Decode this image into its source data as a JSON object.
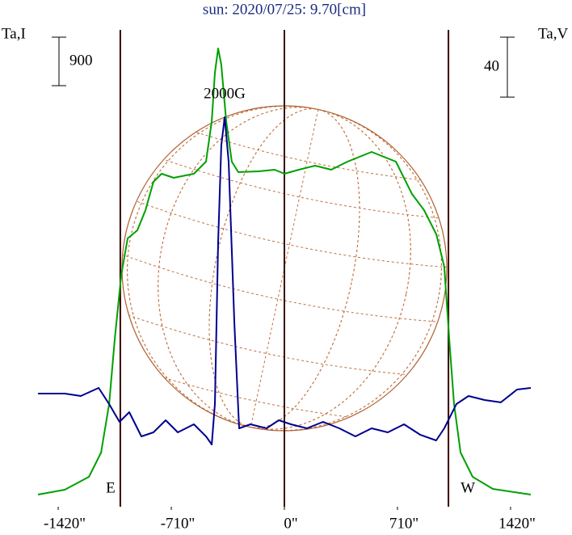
{
  "chart_data": {
    "type": "line",
    "title": "sun: 2020/07/25: 9.70[cm]",
    "ylabel": "Ta,I",
    "y2label": "Ta,V",
    "annotation": "2000G",
    "xlim": [
      -1547,
      1547
    ],
    "xticks": [
      {
        "value": -1420,
        "label": "-1420\""
      },
      {
        "value": -710,
        "label": "-710\""
      },
      {
        "value": 0,
        "label": "0\""
      },
      {
        "value": 710,
        "label": "710\""
      },
      {
        "value": 1420,
        "label": "1420\""
      }
    ],
    "ylim": [
      0,
      9000
    ],
    "y2lim": [
      0,
      324
    ],
    "scale_bars": [
      {
        "value": 900,
        "axis": "y"
      },
      {
        "value": 40,
        "axis": "y2"
      }
    ],
    "limbs": [
      {
        "x": -1030,
        "label": "E"
      },
      {
        "x": 1030,
        "label": "W"
      }
    ],
    "center_line": 0,
    "series": [
      {
        "color": "#00a000",
        "axis": "y",
        "x": [
          -1547,
          -1379,
          -1227,
          -1151,
          -1100,
          -1065,
          -1024,
          -984,
          -923,
          -872,
          -822,
          -771,
          -695,
          -568,
          -492,
          -456,
          -436,
          -416,
          -396,
          -365,
          -330,
          -289,
          -162,
          -61,
          0,
          91,
          193,
          294,
          396,
          548,
          700,
          801,
          877,
          954,
          1004,
          1035,
          1065,
          1106,
          1182,
          1309,
          1547
        ],
        "values": [
          225,
          315,
          555,
          1005,
          1905,
          3105,
          4305,
          4980,
          5130,
          5505,
          6030,
          6180,
          6105,
          6180,
          6405,
          7155,
          8055,
          8505,
          8205,
          7155,
          6405,
          6210,
          6225,
          6255,
          6180,
          6255,
          6330,
          6255,
          6405,
          6585,
          6405,
          5805,
          5505,
          5055,
          4455,
          3105,
          1905,
          1005,
          555,
          330,
          225
        ]
      },
      {
        "color": "#000090",
        "axis": "y2",
        "x": [
          -1547,
          -1379,
          -1278,
          -1166,
          -1100,
          -1035,
          -974,
          -898,
          -822,
          -745,
          -669,
          -568,
          -492,
          -456,
          -436,
          -416,
          -396,
          -375,
          -350,
          -314,
          -284,
          -213,
          -112,
          -35,
          41,
          142,
          243,
          345,
          446,
          548,
          649,
          751,
          852,
          953,
          1004,
          1080,
          1156,
          1258,
          1359,
          1461,
          1547
        ],
        "values": [
          75.6,
          75.6,
          74.0,
          79.4,
          68.6,
          56.7,
          63.2,
          47.0,
          49.7,
          57.8,
          49.7,
          55.1,
          47.0,
          41.6,
          68.6,
          176.6,
          241.4,
          260.3,
          230.6,
          122.6,
          52.4,
          55.1,
          52.4,
          57.8,
          55.1,
          52.4,
          56.7,
          52.4,
          47.0,
          52.4,
          49.7,
          55.1,
          48.1,
          44.3,
          52.4,
          68.6,
          74.0,
          71.3,
          69.7,
          78.3,
          79.4
        ]
      }
    ]
  }
}
